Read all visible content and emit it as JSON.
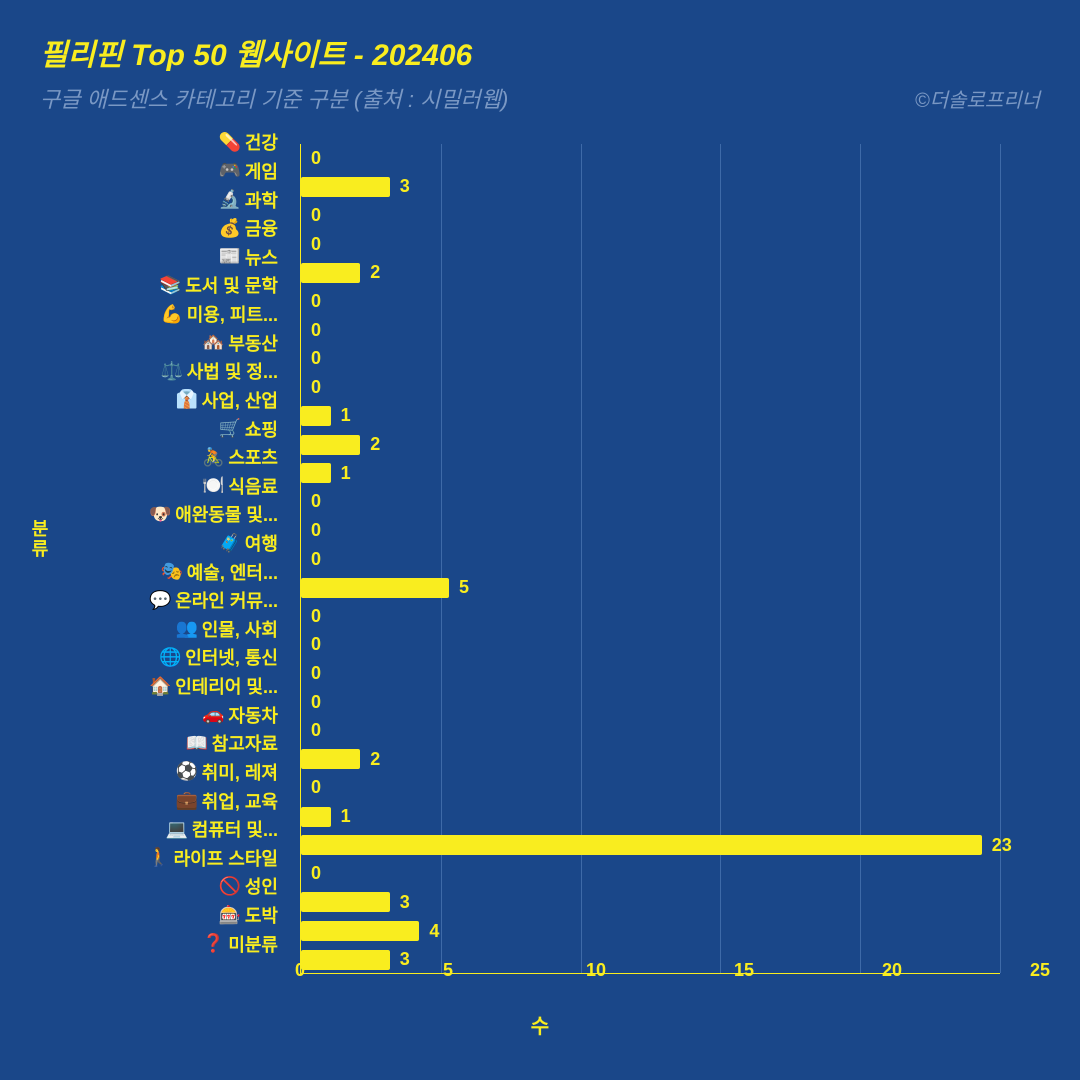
{
  "chart": {
    "type": "bar-horizontal",
    "title": "필리핀 Top 50 웹사이트 - 202406",
    "title_fontsize": 30,
    "subtitle": "구글 애드센스 카테고리 기준 구분 (출처 : 시밀러웹)",
    "subtitle_fontsize": 22,
    "credit": "©더솔로프리너",
    "credit_fontsize": 20,
    "background_color": "#1a4789",
    "text_color": "#f9ed1f",
    "subtitle_color": "#7a98c4",
    "bar_color": "#f9ed1f",
    "grid_color": "#3e6aa8",
    "axis_color": "#f9ed1f",
    "value_color": "#f9ed1f",
    "xlabel": "수",
    "ylabel": "분류",
    "xlim": [
      0,
      25
    ],
    "xtick_step": 5,
    "xticks": [
      0,
      5,
      10,
      15,
      20,
      25
    ],
    "axis_fontsize": 18,
    "categories": [
      {
        "icon": "💊",
        "label": "건강",
        "value": 0
      },
      {
        "icon": "🎮",
        "label": "게임",
        "value": 3
      },
      {
        "icon": "🔬",
        "label": "과학",
        "value": 0
      },
      {
        "icon": "💰",
        "label": "금융",
        "value": 0
      },
      {
        "icon": "📰",
        "label": "뉴스",
        "value": 2
      },
      {
        "icon": "📚",
        "label": "도서 및 문학",
        "value": 0
      },
      {
        "icon": "💪",
        "label": "미용, 피트...",
        "value": 0
      },
      {
        "icon": "🏘️",
        "label": "부동산",
        "value": 0
      },
      {
        "icon": "⚖️",
        "label": "사법 및 정...",
        "value": 0
      },
      {
        "icon": "👔",
        "label": "사업, 산업",
        "value": 1
      },
      {
        "icon": "🛒",
        "label": "쇼핑",
        "value": 2
      },
      {
        "icon": "🚴",
        "label": "스포츠",
        "value": 1
      },
      {
        "icon": "🍽️",
        "label": "식음료",
        "value": 0
      },
      {
        "icon": "🐶",
        "label": "애완동물 및...",
        "value": 0
      },
      {
        "icon": "🧳",
        "label": "여행",
        "value": 0
      },
      {
        "icon": "🎭",
        "label": "예술, 엔터...",
        "value": 5
      },
      {
        "icon": "💬",
        "label": "온라인 커뮤...",
        "value": 0
      },
      {
        "icon": "👥",
        "label": "인물, 사회",
        "value": 0
      },
      {
        "icon": "🌐",
        "label": "인터넷, 통신",
        "value": 0
      },
      {
        "icon": "🏠",
        "label": "인테리어 및...",
        "value": 0
      },
      {
        "icon": "🚗",
        "label": "자동차",
        "value": 0
      },
      {
        "icon": "📖",
        "label": "참고자료",
        "value": 2
      },
      {
        "icon": "⚽",
        "label": "취미, 레져",
        "value": 0
      },
      {
        "icon": "💼",
        "label": "취업, 교육",
        "value": 1
      },
      {
        "icon": "💻",
        "label": "컴퓨터 및...",
        "value": 23
      },
      {
        "icon": "🚶",
        "label": "라이프 스타일",
        "value": 0
      },
      {
        "icon": "🚫",
        "label": "성인",
        "value": 3
      },
      {
        "icon": "🎰",
        "label": "도박",
        "value": 4
      },
      {
        "icon": "❓",
        "label": "미분류",
        "value": 3
      }
    ]
  }
}
